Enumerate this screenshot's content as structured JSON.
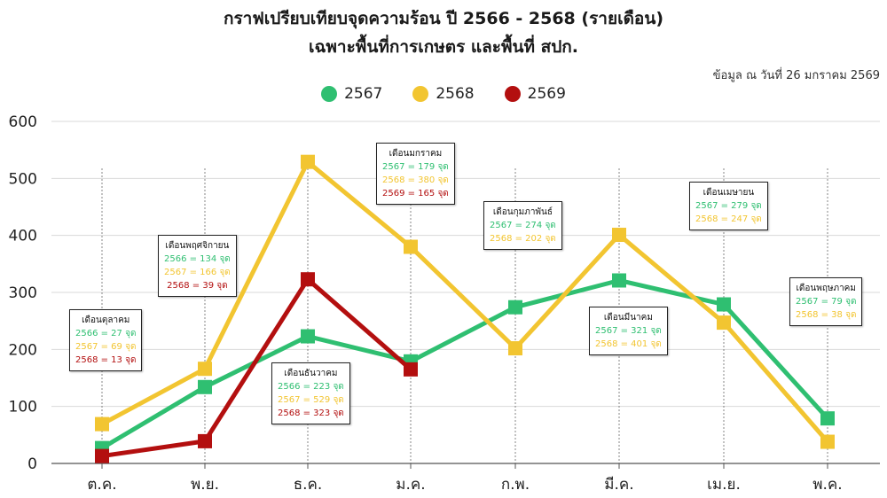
{
  "title": "กราฟเปรียบเทียบจุดความร้อน ปี 2566 - 2568 (รายเดือน)",
  "subtitle": "เฉพาะพื้นที่การเกษตร และพื้นที่ สปก.",
  "note": "ข้อมูล ณ วันที่ 26 มกราคม 2569",
  "legend": [
    {
      "label": "2567",
      "color": "#2fbf71"
    },
    {
      "label": "2568",
      "color": "#f2c531"
    },
    {
      "label": "2569",
      "color": "#b30f0f"
    }
  ],
  "chart_data": {
    "type": "line",
    "categories": [
      "ต.ค.",
      "พ.ย.",
      "ธ.ค.",
      "ม.ค.",
      "ก.พ.",
      "มี.ค.",
      "เม.ย.",
      "พ.ค."
    ],
    "y_ticks": [
      "0",
      "100",
      "200",
      "300",
      "400",
      "500",
      "600"
    ],
    "ylim": [
      0,
      600
    ],
    "grid": true,
    "legend_position": "top-center",
    "series": [
      {
        "name": "2567",
        "color": "#2fbf71",
        "values": [
          27,
          134,
          223,
          179,
          274,
          321,
          279,
          79
        ]
      },
      {
        "name": "2568",
        "color": "#f2c531",
        "values": [
          69,
          166,
          529,
          380,
          202,
          401,
          247,
          38
        ]
      },
      {
        "name": "2569",
        "color": "#b30f0f",
        "values": [
          13,
          39,
          323,
          165,
          null,
          null,
          null,
          null
        ]
      }
    ],
    "annotations": [
      {
        "category": "ต.ค.",
        "title": "เดือนตุลาคม",
        "lines": [
          "2566 = 27 จุด",
          "2567 = 69 จุด",
          "2568 = 13 จุด"
        ]
      },
      {
        "category": "พ.ย.",
        "title": "เดือนพฤศจิกายน",
        "lines": [
          "2566 = 134 จุด",
          "2567 = 166 จุด",
          "2568 = 39 จุด"
        ]
      },
      {
        "category": "ธ.ค.",
        "title": "เดือนธันวาคม",
        "lines": [
          "2566 = 223 จุด",
          "2567 = 529 จุด",
          "2568 = 323 จุด"
        ]
      },
      {
        "category": "ม.ค.",
        "title": "เดือนมกราคม",
        "lines": [
          "2567 = 179 จุด",
          "2568 = 380 จุด",
          "2569 = 165 จุด"
        ]
      },
      {
        "category": "ก.พ.",
        "title": "เดือนกุมภาพันธ์",
        "lines": [
          "2567 = 274 จุด",
          "2568 = 202 จุด"
        ]
      },
      {
        "category": "มี.ค.",
        "title": "เดือนมีนาคม",
        "lines": [
          "2567 = 321 จุด",
          "2568 = 401 จุด"
        ]
      },
      {
        "category": "เม.ย.",
        "title": "เดือนเมษายน",
        "lines": [
          "2567 = 279 จุด",
          "2568 = 247 จุด"
        ]
      },
      {
        "category": "พ.ค.",
        "title": "เดือนพฤษภาคม",
        "lines": [
          "2567 = 79 จุด",
          "2568 = 38 จุด"
        ]
      }
    ]
  }
}
